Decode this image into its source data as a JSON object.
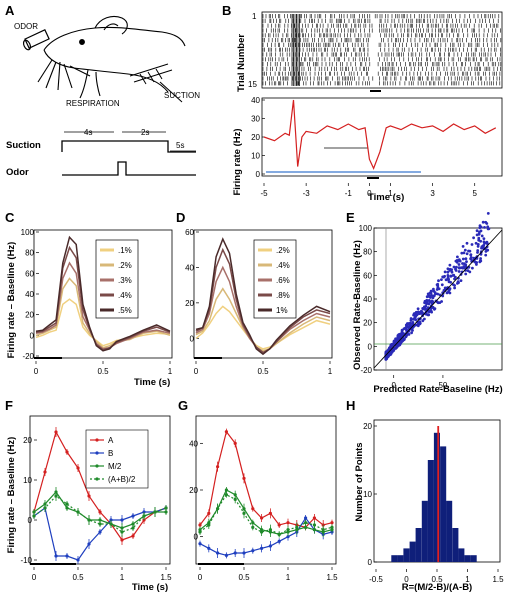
{
  "panels": {
    "A": {
      "label": "A",
      "odor_label": "ODOR",
      "respiration_label": "RESPIRATION",
      "suction_label": "SUCTION",
      "trace_suction": "Suction",
      "trace_odor": "Odor",
      "dur1": "4s",
      "dur2": "2s",
      "dur3": "5s"
    },
    "B": {
      "label": "B",
      "raster_ylabel": "Trial Number",
      "raster_ytick_top": "1",
      "raster_ytick_bottom": "15",
      "rate_ylabel": "Firing rate (Hz)",
      "xlabel": "Time (s)",
      "rate_yticks": [
        "0",
        "10",
        "20",
        "30",
        "40"
      ],
      "xticks": [
        "-5",
        "-3",
        "-1",
        "0",
        "1",
        "3",
        "5"
      ]
    },
    "C": {
      "label": "C",
      "ylabel": "Firing rate – Baseline (Hz)",
      "xlabel": "Time (s)",
      "legend": [
        ".1%",
        ".2%",
        ".3%",
        ".4%",
        ".5%"
      ],
      "yticks": [
        "-20",
        "0",
        "20",
        "40",
        "60",
        "80",
        "100"
      ],
      "xticks": [
        "0",
        "0.5",
        "1"
      ]
    },
    "D": {
      "label": "D",
      "legend": [
        ".2%",
        ".4%",
        ".6%",
        ".8%",
        "1%"
      ],
      "yticks": [
        "0",
        "20",
        "40",
        "60"
      ],
      "xticks": [
        "0",
        "0.5",
        "1"
      ]
    },
    "E": {
      "label": "E",
      "ylabel": "Observed Rate-Baseline (Hz)",
      "xlabel": "Predicted Rate-Baseline (Hz)",
      "ticks": [
        "-20",
        "0",
        "20",
        "40",
        "60",
        "80",
        "100"
      ],
      "xticks": [
        "0",
        "50"
      ]
    },
    "F": {
      "label": "F",
      "ylabel": "Firing rate – Baseline (Hz)",
      "xlabel": "Time (s)",
      "legend": [
        "A",
        "B",
        "M/2",
        "(A+B)/2"
      ],
      "yticks": [
        "-10",
        "0",
        "10",
        "20"
      ],
      "xticks": [
        "0",
        "0.5",
        "1",
        "1.5"
      ]
    },
    "G": {
      "label": "G",
      "yticks": [
        "0",
        "20",
        "40"
      ],
      "xticks": [
        "0",
        "0.5",
        "1",
        "1.5"
      ]
    },
    "H": {
      "label": "H",
      "ylabel": "Number of Points",
      "xlabel": "R=(M/2-B)/(A-B)",
      "yticks": [
        "0",
        "10",
        "20"
      ],
      "xticks": [
        "-0.5",
        "0",
        "0.5",
        "1",
        "1.5"
      ]
    }
  },
  "colors": {
    "red": "#d42020",
    "blue": "#1f3fbf",
    "green": "#1f8a2a",
    "scatter": "#2a2ab8",
    "hist": "#0f1f7a"
  },
  "chart_data": [
    {
      "panel": "B",
      "type": "line",
      "x": [
        -5,
        -4.5,
        -4,
        -3.8,
        -3.6,
        -3.4,
        -3.2,
        -3,
        -2.5,
        -2,
        -1.5,
        -1,
        -0.5,
        -0.2,
        0,
        0.2,
        0.5,
        0.8,
        1,
        1.5,
        2,
        2.5,
        3,
        3.5,
        4,
        4.5,
        5,
        5.5,
        6
      ],
      "values": [
        20,
        18,
        22,
        21,
        40,
        4,
        20,
        23,
        22,
        26,
        24,
        27,
        24,
        25,
        8,
        3,
        12,
        25,
        26,
        24,
        27,
        25,
        26,
        23,
        27,
        24,
        26,
        22,
        25
      ],
      "xlim": [
        -5,
        6.2
      ],
      "ylim": [
        0,
        40
      ],
      "xlabel": "Time (s)",
      "ylabel": "Firing rate (Hz)"
    },
    {
      "panel": "C",
      "type": "line",
      "x": [
        0,
        0.05,
        0.1,
        0.15,
        0.2,
        0.25,
        0.3,
        0.35,
        0.4,
        0.45,
        0.5,
        0.55,
        0.6,
        0.7,
        0.8,
        0.9,
        1.0
      ],
      "series": [
        {
          "name": ".1%",
          "values": [
            -2,
            0,
            3,
            5,
            30,
            35,
            30,
            8,
            0,
            -5,
            -10,
            -8,
            -5,
            -3,
            0,
            2,
            1
          ]
        },
        {
          "name": ".2%",
          "values": [
            0,
            2,
            5,
            8,
            45,
            55,
            48,
            12,
            2,
            -6,
            -12,
            -10,
            -6,
            -4,
            2,
            4,
            0
          ]
        },
        {
          "name": ".3%",
          "values": [
            2,
            3,
            6,
            10,
            55,
            70,
            60,
            18,
            5,
            -8,
            -13,
            -12,
            -8,
            -3,
            3,
            5,
            2
          ]
        },
        {
          "name": ".4%",
          "values": [
            3,
            4,
            8,
            12,
            65,
            85,
            75,
            25,
            6,
            -9,
            -14,
            -12,
            -7,
            -2,
            4,
            8,
            3
          ]
        },
        {
          "name": ".5%",
          "values": [
            4,
            5,
            10,
            15,
            70,
            95,
            88,
            30,
            8,
            -10,
            -15,
            -13,
            -6,
            -1,
            5,
            10,
            4
          ]
        }
      ],
      "xlim": [
        0,
        1
      ],
      "ylim": [
        -20,
        100
      ]
    },
    {
      "panel": "D",
      "type": "line",
      "x": [
        0,
        0.05,
        0.1,
        0.15,
        0.2,
        0.25,
        0.3,
        0.35,
        0.4,
        0.45,
        0.5,
        0.55,
        0.6,
        0.7,
        0.8,
        0.9,
        1.0
      ],
      "series": [
        {
          "name": ".2%",
          "values": [
            0,
            3,
            8,
            14,
            18,
            15,
            10,
            5,
            0,
            -4,
            -6,
            -5,
            -3,
            2,
            6,
            10,
            8
          ]
        },
        {
          "name": ".4%",
          "values": [
            2,
            4,
            10,
            22,
            28,
            22,
            14,
            6,
            0,
            -5,
            -7,
            -6,
            -3,
            3,
            8,
            12,
            10
          ]
        },
        {
          "name": ".6%",
          "values": [
            3,
            5,
            14,
            32,
            40,
            32,
            18,
            7,
            0,
            -5,
            -8,
            -6,
            -2,
            5,
            10,
            14,
            12
          ]
        },
        {
          "name": ".8%",
          "values": [
            4,
            6,
            16,
            40,
            50,
            42,
            22,
            8,
            1,
            -5,
            -8,
            -6,
            -2,
            6,
            12,
            16,
            14
          ]
        },
        {
          "name": "1%",
          "values": [
            5,
            6,
            18,
            46,
            56,
            48,
            25,
            9,
            2,
            -6,
            -9,
            -6,
            -1,
            7,
            13,
            18,
            15
          ]
        }
      ],
      "xlim": [
        0,
        1
      ],
      "ylim": [
        -10,
        60
      ]
    },
    {
      "panel": "E",
      "type": "scatter",
      "xlim": [
        -20,
        110
      ],
      "ylim": [
        -20,
        100
      ]
    },
    {
      "panel": "F",
      "type": "line",
      "x": [
        0,
        0.125,
        0.25,
        0.375,
        0.5,
        0.625,
        0.75,
        0.875,
        1.0,
        1.125,
        1.25,
        1.375,
        1.5
      ],
      "series": [
        {
          "name": "A",
          "values": [
            2,
            12,
            22,
            17,
            13,
            6,
            2,
            -1,
            -5,
            -4,
            0,
            2,
            3
          ]
        },
        {
          "name": "B",
          "values": [
            1,
            3,
            -9,
            -9,
            -10,
            -6,
            -3,
            0,
            0,
            1,
            2,
            2,
            3
          ]
        },
        {
          "name": "M/2",
          "values": [
            2,
            4,
            7,
            3,
            2,
            0,
            0,
            -1,
            -2,
            -1,
            1,
            2,
            2
          ]
        },
        {
          "name": "(A+B)/2",
          "values": [
            1,
            3,
            6,
            4,
            2,
            0,
            -1,
            -1,
            -3,
            -2,
            1,
            2,
            3
          ]
        }
      ],
      "xlim": [
        0,
        1.5
      ],
      "ylim": [
        -10,
        25
      ]
    },
    {
      "panel": "G",
      "type": "line",
      "x": [
        0,
        0.1,
        0.2,
        0.3,
        0.4,
        0.5,
        0.6,
        0.7,
        0.8,
        0.9,
        1.0,
        1.1,
        1.2,
        1.3,
        1.4,
        1.5
      ],
      "series": [
        {
          "name": "A",
          "values": [
            5,
            10,
            30,
            45,
            40,
            25,
            12,
            8,
            10,
            5,
            6,
            5,
            4,
            8,
            5,
            6
          ]
        },
        {
          "name": "B",
          "values": [
            -3,
            -5,
            -7,
            -8,
            -7,
            -7,
            -6,
            -5,
            -4,
            -2,
            0,
            2,
            8,
            3,
            1,
            2
          ]
        },
        {
          "name": "M/2",
          "values": [
            3,
            6,
            12,
            20,
            18,
            12,
            6,
            3,
            2,
            1,
            2,
            3,
            4,
            3,
            2,
            3
          ]
        },
        {
          "name": "(A+B)/2",
          "values": [
            2,
            5,
            12,
            18,
            16,
            10,
            4,
            2,
            3,
            1,
            3,
            4,
            6,
            5,
            3,
            4
          ]
        }
      ],
      "xlim": [
        0,
        1.5
      ],
      "ylim": [
        -10,
        50
      ]
    },
    {
      "panel": "H",
      "type": "bar",
      "categories": [
        "-0.2",
        "-0.1",
        "0",
        "0.1",
        "0.2",
        "0.3",
        "0.4",
        "0.5",
        "0.6",
        "0.7",
        "0.8",
        "0.9",
        "1.0",
        "1.1"
      ],
      "values": [
        1,
        1,
        2,
        3,
        5,
        9,
        15,
        19,
        17,
        9,
        5,
        2,
        1,
        1
      ],
      "xlim": [
        -0.5,
        1.5
      ],
      "ylim": [
        0,
        20
      ],
      "mean_line": 0.52
    }
  ]
}
